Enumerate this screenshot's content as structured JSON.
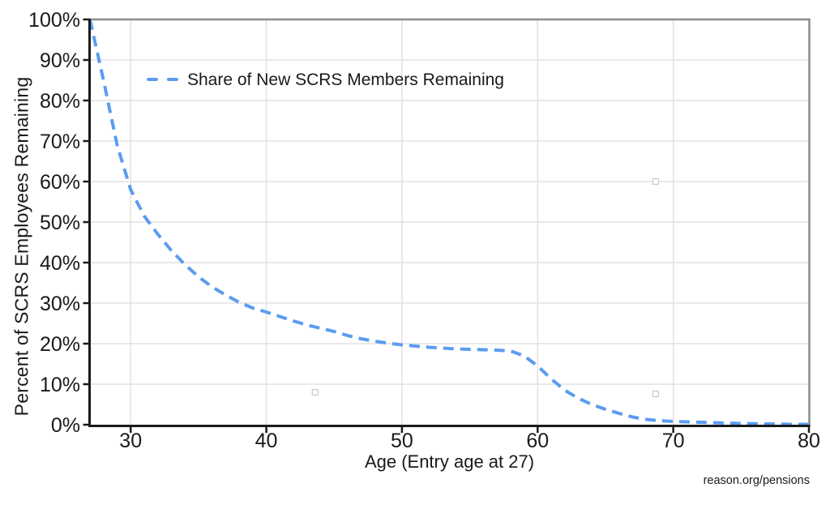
{
  "figure": {
    "background": "#ffffff",
    "source_label": "reason.org/pensions"
  },
  "chart_data": {
    "type": "line",
    "title": "",
    "xlabel": "Age (Entry age at 27)",
    "ylabel": "Percent of SCRS Employees Remaining",
    "xlim": [
      27,
      80
    ],
    "ylim": [
      0,
      100
    ],
    "x_ticks": [
      30,
      40,
      50,
      60,
      70,
      80
    ],
    "y_ticks": [
      0,
      10,
      20,
      30,
      40,
      50,
      60,
      70,
      80,
      90,
      100
    ],
    "y_tick_suffix": "%",
    "grid": true,
    "legend": {
      "position": "inside-top-left",
      "entries": [
        {
          "label": "Share of New SCRS Members Remaining",
          "color": "#5B9CF0",
          "style": "dashed"
        }
      ]
    },
    "series": [
      {
        "name": "Share of New SCRS Members Remaining",
        "color": "#5B9CF0",
        "style": "dashed",
        "points": [
          [
            27,
            100
          ],
          [
            28,
            85
          ],
          [
            29,
            69
          ],
          [
            30,
            58
          ],
          [
            31,
            51.5
          ],
          [
            32,
            47
          ],
          [
            33,
            43
          ],
          [
            34,
            39.5
          ],
          [
            35,
            36.5
          ],
          [
            36,
            34
          ],
          [
            37,
            32
          ],
          [
            38,
            30.2
          ],
          [
            39,
            28.8
          ],
          [
            40,
            27.8
          ],
          [
            41,
            26.7
          ],
          [
            42,
            25.6
          ],
          [
            43,
            24.6
          ],
          [
            44,
            23.8
          ],
          [
            45,
            23
          ],
          [
            46,
            22
          ],
          [
            47,
            21.2
          ],
          [
            48,
            20.6
          ],
          [
            49,
            20.1
          ],
          [
            50,
            19.7
          ],
          [
            51,
            19.4
          ],
          [
            52,
            19.1
          ],
          [
            53,
            18.9
          ],
          [
            54,
            18.7
          ],
          [
            55,
            18.6
          ],
          [
            56,
            18.5
          ],
          [
            57,
            18.4
          ],
          [
            58,
            18.2
          ],
          [
            59,
            17
          ],
          [
            60,
            14.5
          ],
          [
            61,
            11.3
          ],
          [
            62,
            8.5
          ],
          [
            63,
            6.5
          ],
          [
            64,
            5
          ],
          [
            65,
            3.8
          ],
          [
            66,
            2.8
          ],
          [
            67,
            1.9
          ],
          [
            68,
            1.3
          ],
          [
            69,
            1
          ],
          [
            70,
            0.8
          ],
          [
            71,
            0.7
          ],
          [
            72,
            0.6
          ],
          [
            73,
            0.5
          ],
          [
            74,
            0.4
          ],
          [
            75,
            0.3
          ],
          [
            76,
            0.25
          ],
          [
            77,
            0.2
          ],
          [
            78,
            0.15
          ],
          [
            79,
            0.1
          ],
          [
            80,
            0.1
          ]
        ]
      }
    ],
    "stray_markers": [
      [
        43.6,
        8.0
      ],
      [
        68.7,
        60.0
      ],
      [
        68.7,
        7.6
      ]
    ],
    "colors": {
      "line": "#5B9CF0",
      "axis": "#1a1a1a",
      "grid": "#e2e2e2",
      "border": "#8c8c8c",
      "text": "#1a1a1a",
      "marker_stroke": "#c9c9c9"
    }
  }
}
